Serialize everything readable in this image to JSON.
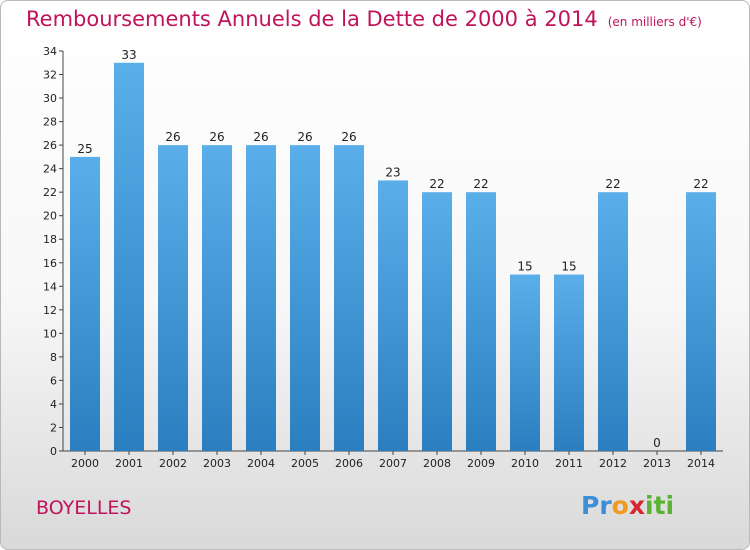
{
  "chart_data": {
    "type": "bar",
    "title": "Remboursements Annuels de la Dette de 2000 à 2014",
    "unit_label": "(en milliers d'€)",
    "categories": [
      "2000",
      "2001",
      "2002",
      "2003",
      "2004",
      "2005",
      "2006",
      "2007",
      "2008",
      "2009",
      "2010",
      "2011",
      "2012",
      "2013",
      "2014"
    ],
    "values": [
      25,
      33,
      26,
      26,
      26,
      26,
      26,
      23,
      22,
      22,
      15,
      15,
      22,
      0,
      22
    ],
    "ylim": [
      0,
      34
    ],
    "yticks": [
      0,
      2,
      4,
      6,
      8,
      10,
      12,
      14,
      16,
      18,
      20,
      22,
      24,
      26,
      28,
      30,
      32,
      34
    ],
    "grid": false,
    "bar_color_top": "#5aaee9",
    "bar_color_bottom": "#2b7fc0"
  },
  "footer": {
    "commune": "BOYELLES",
    "logo_letters": [
      "P",
      "r",
      "o",
      "x",
      "i",
      "t",
      "i"
    ],
    "logo_colors": [
      "#3a8fd6",
      "#3a8fd6",
      "#f29a1d",
      "#d8282f",
      "#5ab232",
      "#5ab232",
      "#5ab232"
    ]
  },
  "colors": {
    "accent": "#c0145a"
  }
}
